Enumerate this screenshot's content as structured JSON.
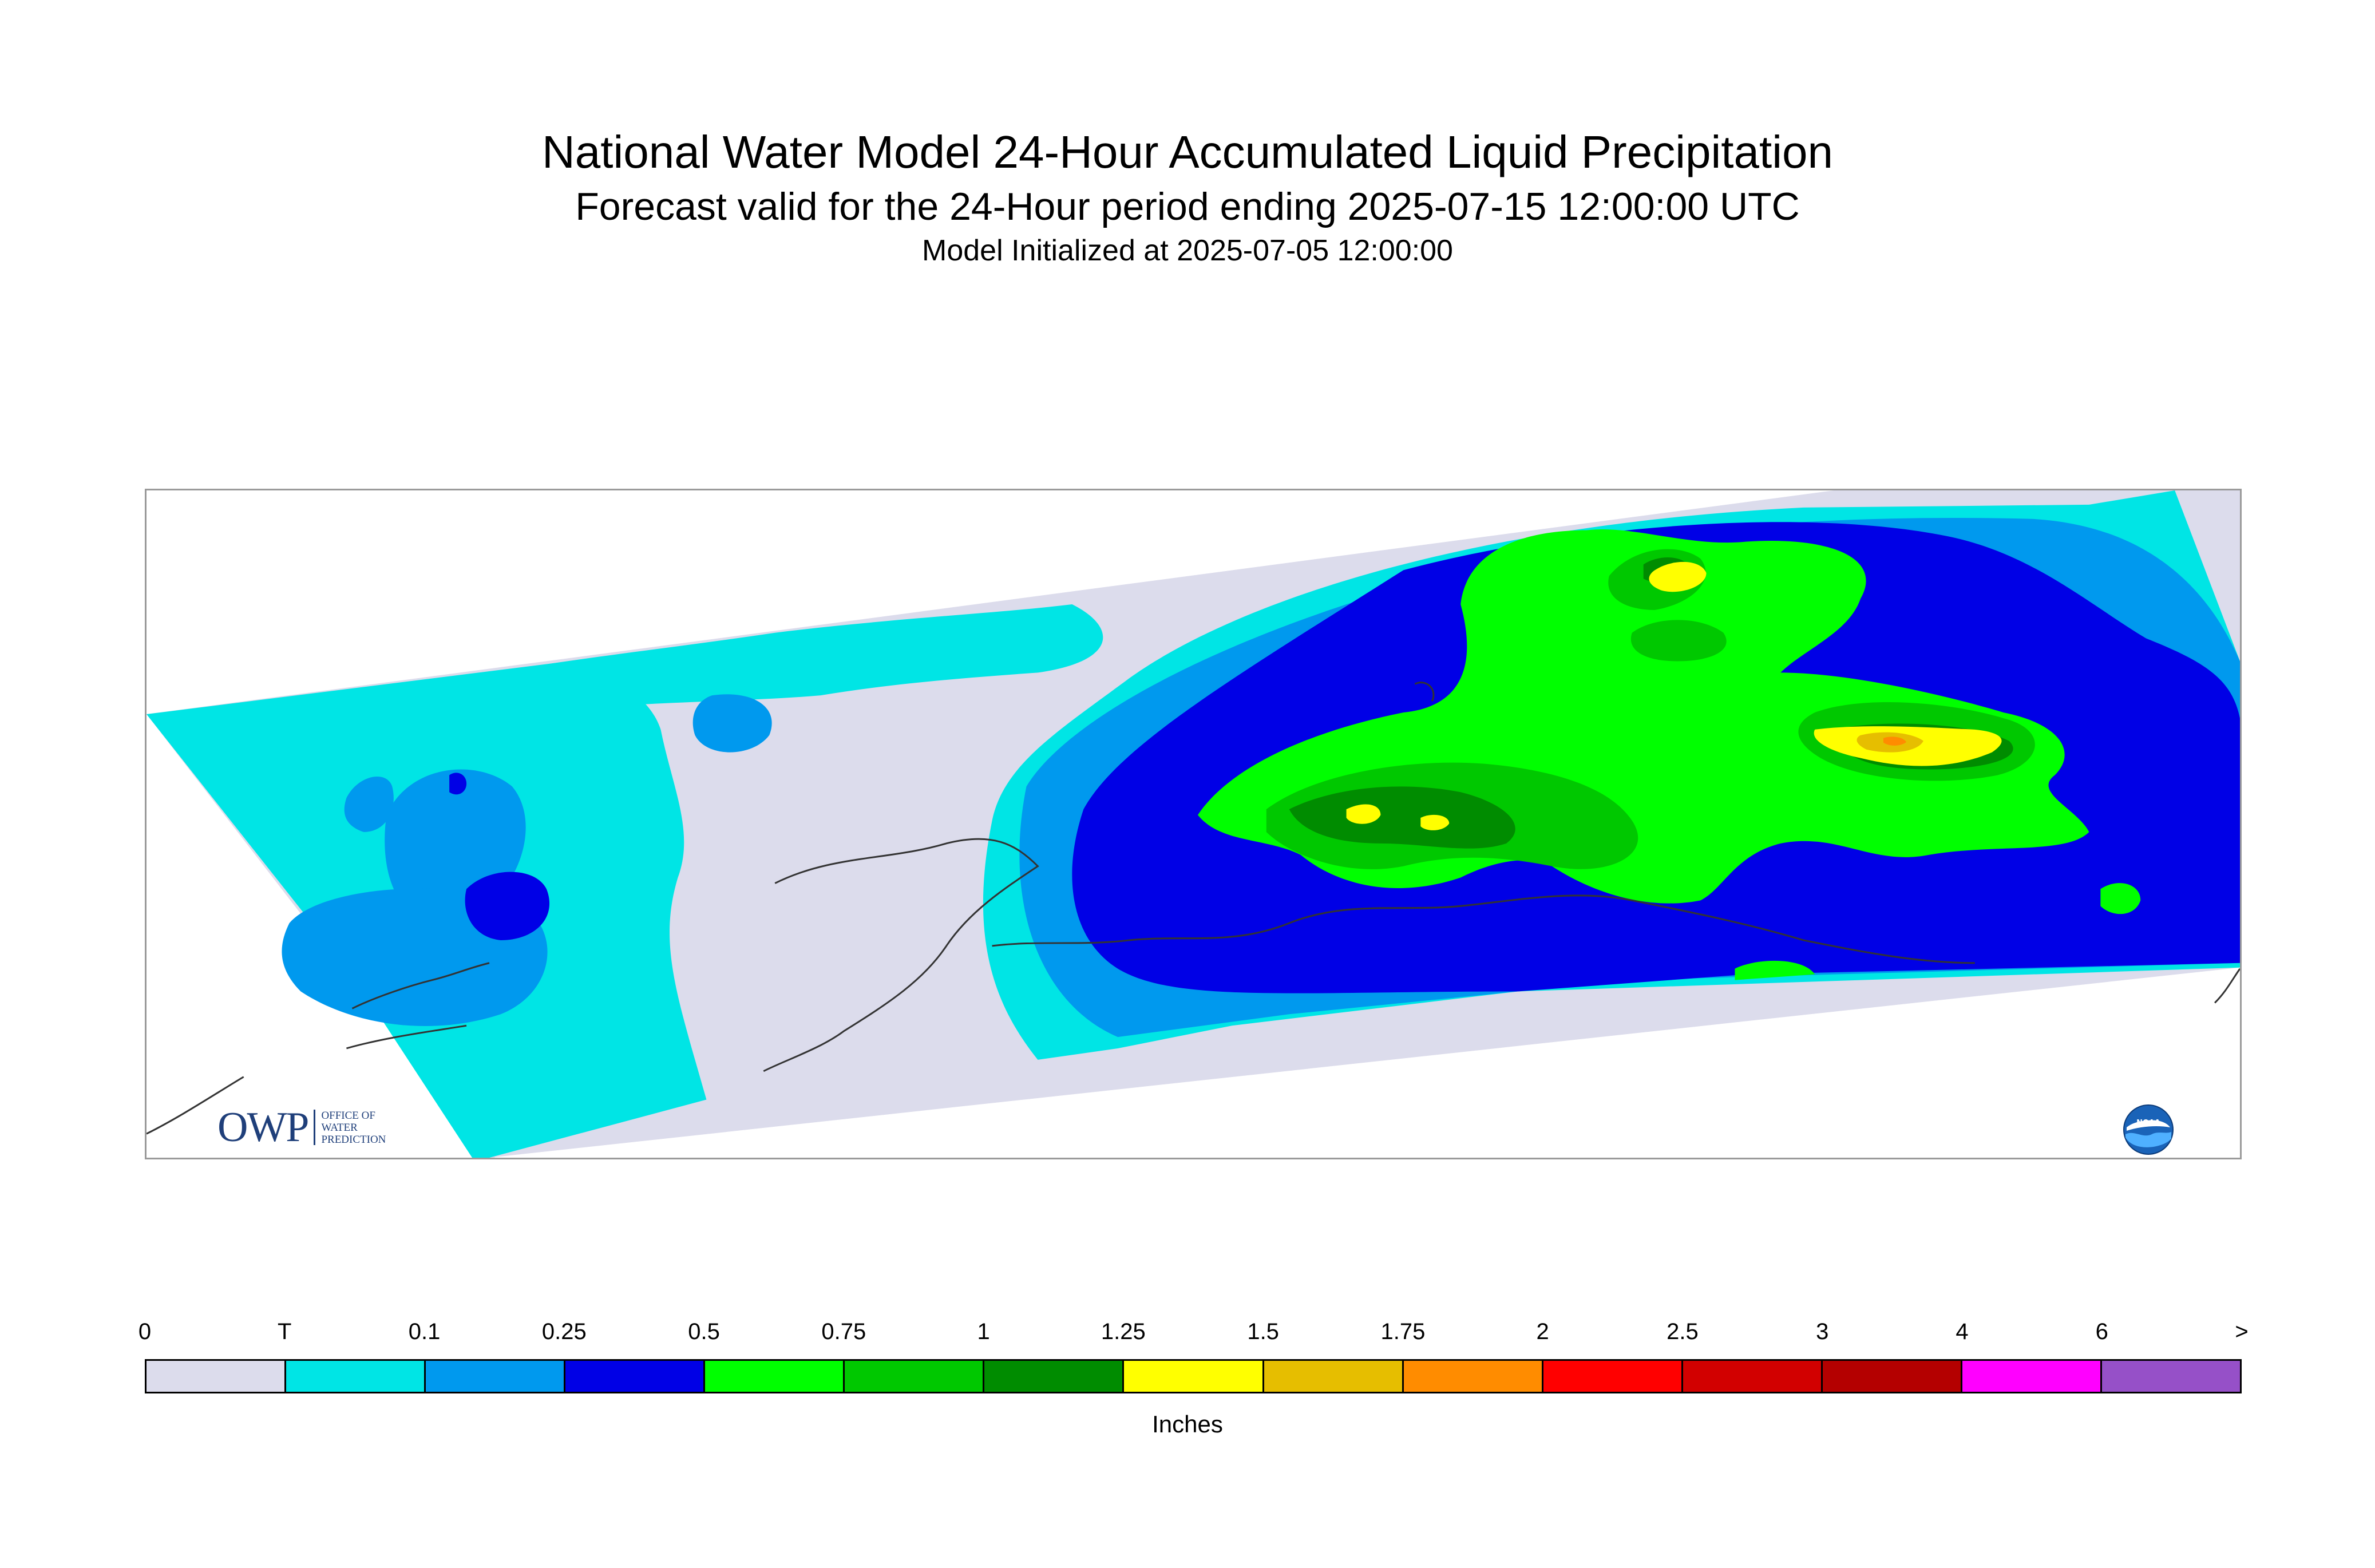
{
  "header": {
    "title": "National Water Model 24-Hour Accumulated Liquid Precipitation",
    "subtitle": "Forecast valid for the 24-Hour period ending 2025-07-15 12:00:00 UTC",
    "init_line": "Model Initialized at 2025-07-05 12:00:00"
  },
  "logos": {
    "owp_mark": "OWP",
    "owp_text": [
      "OFFICE OF",
      "WATER",
      "PREDICTION"
    ],
    "noaa_mark": "NOAA"
  },
  "colorbar": {
    "labels": [
      "0",
      "T",
      "0.1",
      "0.25",
      "0.5",
      "0.75",
      "1",
      "1.25",
      "1.5",
      "1.75",
      "2",
      "2.5",
      "3",
      "4",
      "6",
      ">"
    ],
    "colors": [
      "#dcdcec",
      "#00e5e5",
      "#0099ee",
      "#0000e6",
      "#00ff00",
      "#00c800",
      "#008c00",
      "#ffff00",
      "#e6be00",
      "#ff8c00",
      "#ff0000",
      "#d20000",
      "#b40000",
      "#ff00ff",
      "#9650c8"
    ],
    "units": "Inches"
  }
}
